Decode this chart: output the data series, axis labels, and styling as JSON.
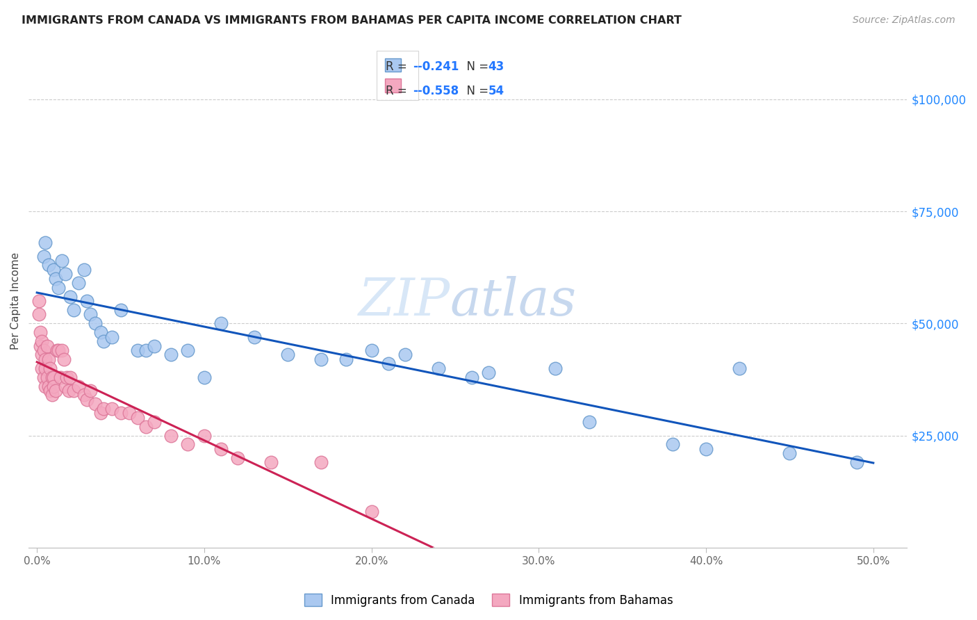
{
  "title": "IMMIGRANTS FROM CANADA VS IMMIGRANTS FROM BAHAMAS PER CAPITA INCOME CORRELATION CHART",
  "source": "Source: ZipAtlas.com",
  "ylabel": "Per Capita Income",
  "xlabel_ticks": [
    "0.0%",
    "10.0%",
    "20.0%",
    "30.0%",
    "40.0%",
    "50.0%"
  ],
  "xlabel_vals": [
    0.0,
    0.1,
    0.2,
    0.3,
    0.4,
    0.5
  ],
  "ytick_labels": [
    "$25,000",
    "$50,000",
    "$75,000",
    "$100,000"
  ],
  "ytick_vals": [
    25000,
    50000,
    75000,
    100000
  ],
  "xlim": [
    -0.005,
    0.52
  ],
  "ylim": [
    0,
    110000
  ],
  "canada_color": "#aac8f0",
  "bahamas_color": "#f4a8c0",
  "canada_edge": "#6699cc",
  "bahamas_edge": "#dd7799",
  "trendline_canada_color": "#1155bb",
  "trendline_bahamas_color": "#cc2255",
  "legend_R_canada": "-0.241",
  "legend_N_canada": "43",
  "legend_R_bahamas": "-0.558",
  "legend_N_bahamas": "54",
  "watermark": "ZIPatlas",
  "canada_x": [
    0.004,
    0.005,
    0.007,
    0.01,
    0.011,
    0.013,
    0.015,
    0.017,
    0.02,
    0.022,
    0.025,
    0.028,
    0.03,
    0.032,
    0.035,
    0.038,
    0.04,
    0.045,
    0.05,
    0.06,
    0.065,
    0.07,
    0.08,
    0.09,
    0.1,
    0.11,
    0.13,
    0.15,
    0.17,
    0.185,
    0.2,
    0.21,
    0.22,
    0.24,
    0.26,
    0.27,
    0.31,
    0.33,
    0.38,
    0.4,
    0.42,
    0.45,
    0.49
  ],
  "canada_y": [
    65000,
    68000,
    63000,
    62000,
    60000,
    58000,
    64000,
    61000,
    56000,
    53000,
    59000,
    62000,
    55000,
    52000,
    50000,
    48000,
    46000,
    47000,
    53000,
    44000,
    44000,
    45000,
    43000,
    44000,
    38000,
    50000,
    47000,
    43000,
    42000,
    42000,
    44000,
    41000,
    43000,
    40000,
    38000,
    39000,
    40000,
    28000,
    23000,
    22000,
    40000,
    21000,
    19000
  ],
  "bahamas_x": [
    0.001,
    0.001,
    0.002,
    0.002,
    0.003,
    0.003,
    0.003,
    0.004,
    0.004,
    0.005,
    0.005,
    0.005,
    0.006,
    0.006,
    0.007,
    0.007,
    0.008,
    0.008,
    0.009,
    0.009,
    0.01,
    0.01,
    0.011,
    0.012,
    0.013,
    0.014,
    0.015,
    0.016,
    0.017,
    0.018,
    0.019,
    0.02,
    0.022,
    0.025,
    0.028,
    0.03,
    0.032,
    0.035,
    0.038,
    0.04,
    0.045,
    0.05,
    0.055,
    0.06,
    0.065,
    0.07,
    0.08,
    0.09,
    0.1,
    0.11,
    0.12,
    0.14,
    0.17,
    0.2
  ],
  "bahamas_y": [
    55000,
    52000,
    45000,
    48000,
    46000,
    43000,
    40000,
    44000,
    38000,
    42000,
    40000,
    36000,
    45000,
    38000,
    42000,
    36000,
    40000,
    35000,
    38000,
    34000,
    38000,
    36000,
    35000,
    44000,
    44000,
    38000,
    44000,
    42000,
    36000,
    38000,
    35000,
    38000,
    35000,
    36000,
    34000,
    33000,
    35000,
    32000,
    30000,
    31000,
    31000,
    30000,
    30000,
    29000,
    27000,
    28000,
    25000,
    23000,
    25000,
    22000,
    20000,
    19000,
    19000,
    8000
  ]
}
